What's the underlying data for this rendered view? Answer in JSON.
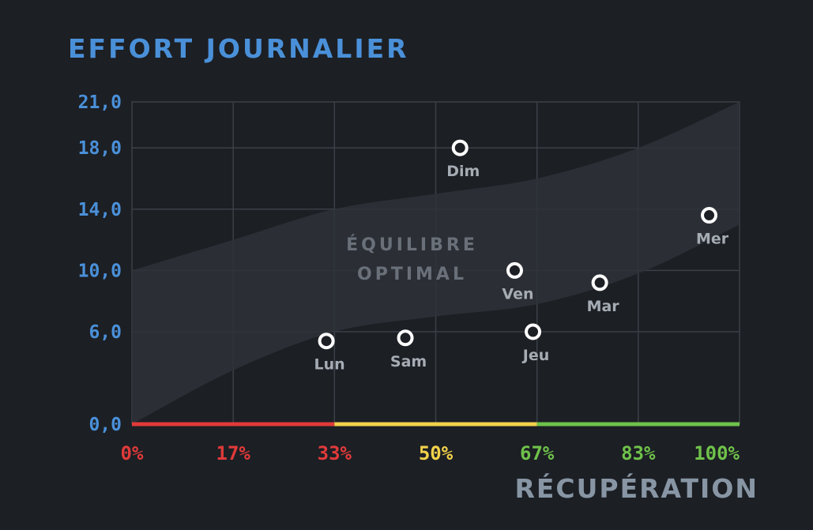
{
  "chart_data": {
    "type": "scatter",
    "title": "EFFORT JOURNALIER",
    "xlabel": "RÉCUPÉRATION",
    "ylabel": "",
    "xlim": [
      0,
      100
    ],
    "ylim": [
      0,
      21
    ],
    "x_ticks": [
      {
        "value": 0,
        "label": "0%",
        "color": "#e03a3a"
      },
      {
        "value": 16.67,
        "label": "17%",
        "color": "#e03a3a"
      },
      {
        "value": 33.33,
        "label": "33%",
        "color": "#e03a3a"
      },
      {
        "value": 50,
        "label": "50%",
        "color": "#f2d24b"
      },
      {
        "value": 66.67,
        "label": "67%",
        "color": "#6fc24a"
      },
      {
        "value": 83.33,
        "label": "83%",
        "color": "#6fc24a"
      },
      {
        "value": 100,
        "label": "100%",
        "color": "#6fc24a"
      }
    ],
    "y_ticks": [
      {
        "value": 0,
        "label": "0,0"
      },
      {
        "value": 6,
        "label": "6,0"
      },
      {
        "value": 10,
        "label": "10,0"
      },
      {
        "value": 14,
        "label": "14,0"
      },
      {
        "value": 18,
        "label": "18,0"
      },
      {
        "value": 21,
        "label": "21,0"
      }
    ],
    "grid": true,
    "x_color_segments": [
      {
        "from": 0,
        "to": 33.33,
        "color": "#e03a3a"
      },
      {
        "from": 33.33,
        "to": 66.67,
        "color": "#f2d24b"
      },
      {
        "from": 66.67,
        "to": 100,
        "color": "#6fc24a"
      }
    ],
    "band": {
      "label_lines": [
        "ÉQUILIBRE",
        "OPTIMAL"
      ],
      "upper": [
        [
          0,
          10.0
        ],
        [
          16.67,
          12.0
        ],
        [
          33.33,
          14.0
        ],
        [
          50,
          15.0
        ],
        [
          66.67,
          16.0
        ],
        [
          83.33,
          18.0
        ],
        [
          100,
          21.0
        ]
      ],
      "lower": [
        [
          0,
          0.0
        ],
        [
          16.67,
          3.5
        ],
        [
          33.33,
          6.0
        ],
        [
          50,
          7.0
        ],
        [
          66.67,
          7.8
        ],
        [
          83.33,
          9.8
        ],
        [
          100,
          13.0
        ]
      ]
    },
    "points": [
      {
        "label": "Lun",
        "x": 32,
        "y": 5.4
      },
      {
        "label": "Mar",
        "x": 77,
        "y": 9.2
      },
      {
        "label": "Mer",
        "x": 95,
        "y": 13.6
      },
      {
        "label": "Jeu",
        "x": 66,
        "y": 6.0
      },
      {
        "label": "Ven",
        "x": 63,
        "y": 10.0
      },
      {
        "label": "Sam",
        "x": 45,
        "y": 5.6
      },
      {
        "label": "Dim",
        "x": 54,
        "y": 18.0
      }
    ],
    "colors": {
      "background": "#1c1f24",
      "grid": "#3b4047",
      "band": "#2e3238",
      "accent": "#4a90d9",
      "point_stroke": "#ffffff"
    }
  }
}
